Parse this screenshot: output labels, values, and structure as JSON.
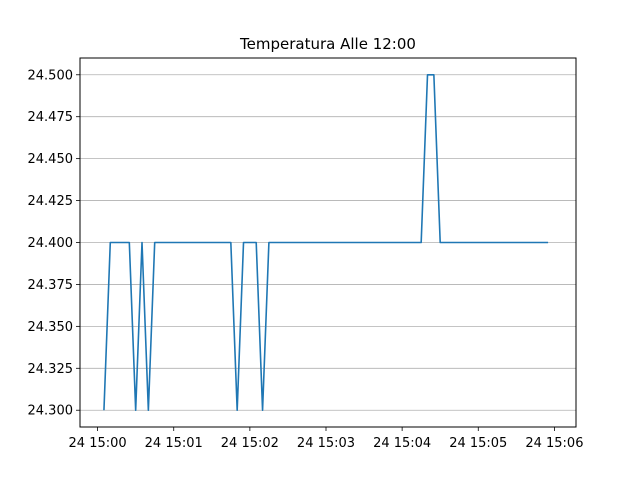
{
  "chart_data": {
    "type": "line",
    "title": "Temperatura Alle 12:00",
    "xlabel": "",
    "ylabel": "",
    "x_tick_labels": [
      "24 15:00",
      "24 15:01",
      "24 15:02",
      "24 15:03",
      "24 15:04",
      "24 15:05",
      "24 15:06"
    ],
    "y_tick_labels": [
      "24.300",
      "24.325",
      "24.350",
      "24.375",
      "24.400",
      "24.425",
      "24.450",
      "24.475",
      "24.500"
    ],
    "y_ticks": [
      24.3,
      24.325,
      24.35,
      24.375,
      24.4,
      24.425,
      24.45,
      24.475,
      24.5
    ],
    "xlim": [
      "15:00:00",
      "15:06:00"
    ],
    "ylim": [
      24.29,
      24.51
    ],
    "grid": "horizontal",
    "series": [
      {
        "color": "#1f77b4",
        "x": [
          "15:00:05",
          "15:00:10",
          "15:00:15",
          "15:00:20",
          "15:00:25",
          "15:00:30",
          "15:00:35",
          "15:00:40",
          "15:00:45",
          "15:00:50",
          "15:00:55",
          "15:01:00",
          "15:01:05",
          "15:01:10",
          "15:01:15",
          "15:01:20",
          "15:01:25",
          "15:01:30",
          "15:01:35",
          "15:01:40",
          "15:01:45",
          "15:01:50",
          "15:01:55",
          "15:02:00",
          "15:02:05",
          "15:02:10",
          "15:02:15",
          "15:02:20",
          "15:02:25",
          "15:02:30",
          "15:02:35",
          "15:02:40",
          "15:02:45",
          "15:02:50",
          "15:02:55",
          "15:03:00",
          "15:03:05",
          "15:03:10",
          "15:03:15",
          "15:03:20",
          "15:03:25",
          "15:03:30",
          "15:03:35",
          "15:03:40",
          "15:03:45",
          "15:03:50",
          "15:03:55",
          "15:04:00",
          "15:04:05",
          "15:04:10",
          "15:04:15",
          "15:04:20",
          "15:04:25",
          "15:04:30",
          "15:04:35",
          "15:04:40",
          "15:04:45",
          "15:04:50",
          "15:04:55",
          "15:05:00",
          "15:05:05",
          "15:05:10",
          "15:05:15",
          "15:05:20",
          "15:05:25",
          "15:05:30",
          "15:05:35",
          "15:05:40",
          "15:05:45",
          "15:05:50",
          "15:05:55"
        ],
        "values": [
          24.3,
          24.4,
          24.4,
          24.4,
          24.4,
          24.3,
          24.4,
          24.3,
          24.4,
          24.4,
          24.4,
          24.4,
          24.4,
          24.4,
          24.4,
          24.4,
          24.4,
          24.4,
          24.4,
          24.4,
          24.4,
          24.3,
          24.4,
          24.4,
          24.4,
          24.3,
          24.4,
          24.4,
          24.4,
          24.4,
          24.4,
          24.4,
          24.4,
          24.4,
          24.4,
          24.4,
          24.4,
          24.4,
          24.4,
          24.4,
          24.4,
          24.4,
          24.4,
          24.4,
          24.4,
          24.4,
          24.4,
          24.4,
          24.4,
          24.4,
          24.4,
          24.5,
          24.5,
          24.4,
          24.4,
          24.4,
          24.4,
          24.4,
          24.4,
          24.4,
          24.4,
          24.4,
          24.4,
          24.4,
          24.4,
          24.4,
          24.4,
          24.4,
          24.4,
          24.4,
          24.4
        ]
      }
    ]
  }
}
